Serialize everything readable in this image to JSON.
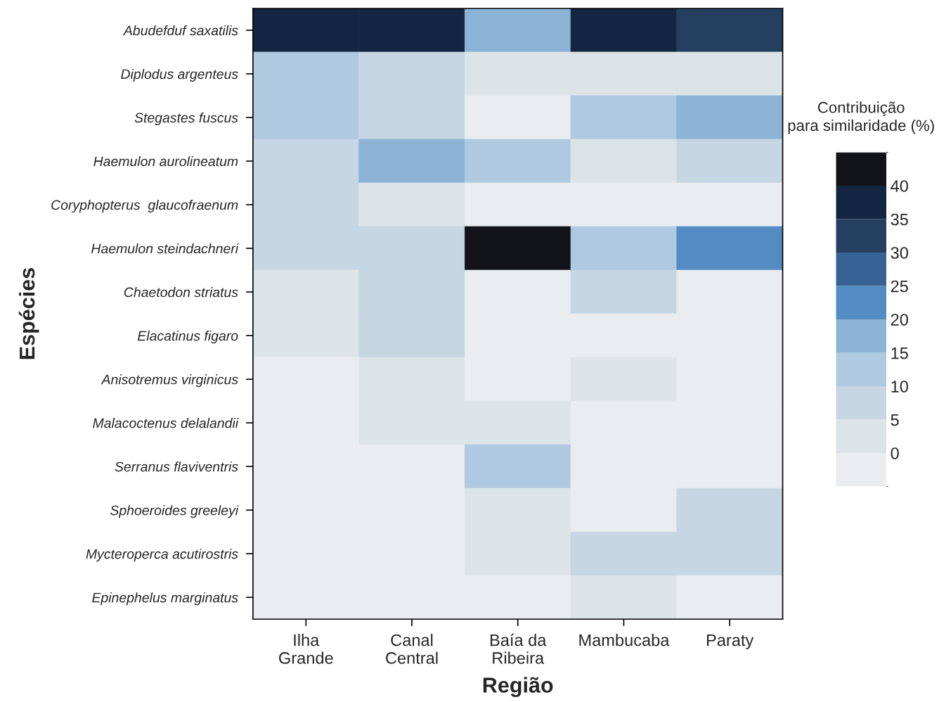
{
  "chart_data": {
    "type": "heatmap",
    "xlabel": "Região",
    "ylabel": "Espécies",
    "clabel": "Contribuição\npara similaridade (%)",
    "categories": [
      "Ilha\nGrande",
      "Canal\nCentral",
      "Baía da\nRibeira",
      "Mambucaba",
      "Paraty"
    ],
    "y_categories": [
      "Abudefduf saxatilis",
      "Diplodus argenteus",
      "Stegastes fuscus",
      "Haemulon aurolineatum",
      "Coryphopterus  glaucofraenum",
      "Haemulon steindachneri",
      "Chaetodon striatus",
      "Elacatinus figaro",
      "Anisotremus virginicus",
      "Malacoctenus delalandii",
      "Serranus flaviventris",
      "Sphoeroides greeleyi",
      "Mycteroperca acutirostris",
      "Epinephelus marginatus"
    ],
    "cells": [
      [
        37.5,
        37.5,
        17.5,
        37.5,
        32.5
      ],
      [
        12.5,
        7.5,
        2.5,
        2.5,
        2.5
      ],
      [
        12.5,
        7.5,
        -2.5,
        12.5,
        17.5
      ],
      [
        7.5,
        17.5,
        12.5,
        2.5,
        7.5
      ],
      [
        7.5,
        2.5,
        -2.5,
        -2.5,
        -2.5
      ],
      [
        7.5,
        7.5,
        42.5,
        12.5,
        22.5
      ],
      [
        2.5,
        7.5,
        -2.5,
        7.5,
        -2.5
      ],
      [
        2.5,
        7.5,
        -2.5,
        -2.5,
        -2.5
      ],
      [
        -2.5,
        2.5,
        -2.5,
        2.5,
        -2.5
      ],
      [
        -2.5,
        2.5,
        2.5,
        -2.5,
        -2.5
      ],
      [
        -2.5,
        -2.5,
        12.5,
        -2.5,
        -2.5
      ],
      [
        -2.5,
        -2.5,
        2.5,
        -2.5,
        7.5
      ],
      [
        -2.5,
        -2.5,
        2.5,
        7.5,
        7.5
      ],
      [
        -2.5,
        -2.5,
        -2.5,
        2.5,
        -2.5
      ]
    ],
    "clim": [
      -5,
      45
    ],
    "cticks": [
      0,
      5,
      10,
      15,
      20,
      25,
      30,
      35,
      40
    ],
    "colors": [
      "#e9edf0",
      "#dde4e8",
      "#c6d6e3",
      "#afc9e0",
      "#8cb3d5",
      "#528cc2",
      "#366394",
      "#243f5f",
      "#132540",
      "#111318"
    ]
  }
}
